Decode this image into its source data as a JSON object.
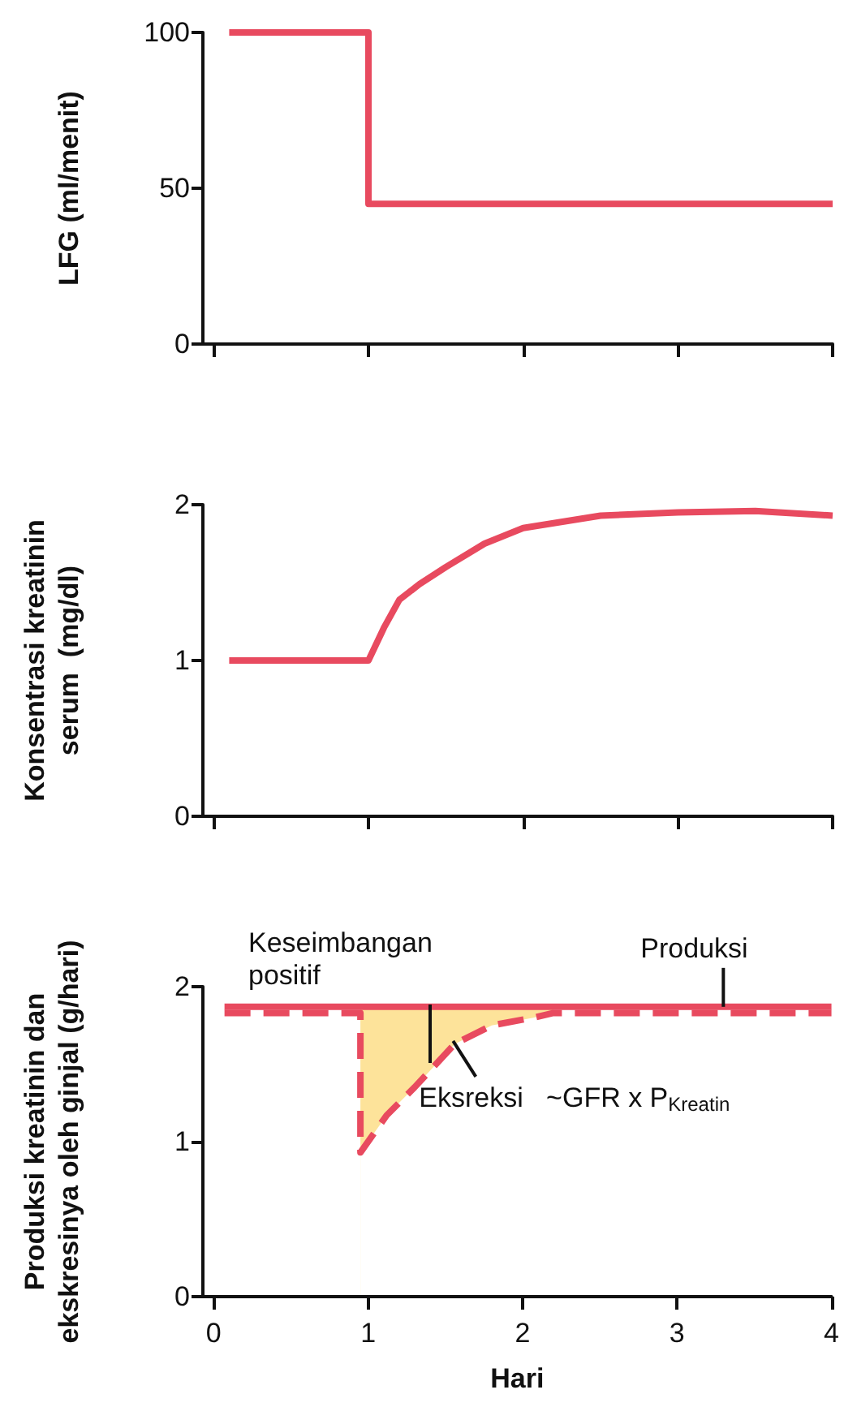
{
  "chart_data": [
    {
      "type": "step",
      "ylabel": "LFG (ml/menit)",
      "x": [
        0.1,
        1,
        4
      ],
      "series": [
        {
          "color": "#e84a5f",
          "values": [
            100,
            45,
            45
          ]
        }
      ],
      "xlim": [
        -0.07,
        4
      ],
      "xticks": [
        {
          "value": 0,
          "label": null
        },
        {
          "value": 1,
          "label": null
        },
        {
          "value": 2,
          "label": null
        },
        {
          "value": 3,
          "label": null
        },
        {
          "value": 4,
          "label": null
        }
      ],
      "ylim": [
        0,
        100
      ],
      "yticks": [
        0,
        50,
        100
      ],
      "tick_labels": "y",
      "marker": "none",
      "line_style": "solid",
      "grid": false
    },
    {
      "type": "line",
      "ylabel": "Konsentrasi kreatinin\nserum  (mg/dl)",
      "x": [
        0.1,
        1,
        1.1,
        1.2,
        1.33,
        1.5,
        1.75,
        2,
        2.5,
        3,
        3.5,
        4
      ],
      "series": [
        {
          "color": "#e84a5f",
          "values": [
            1,
            1,
            1.21,
            1.39,
            1.49,
            1.6,
            1.75,
            1.85,
            1.93,
            1.95,
            1.96,
            1.93
          ]
        }
      ],
      "xlim": [
        -0.07,
        4
      ],
      "xticks": [
        {
          "value": 0,
          "label": null
        },
        {
          "value": 1,
          "label": null
        },
        {
          "value": 2,
          "label": null
        },
        {
          "value": 3,
          "label": null
        },
        {
          "value": 4,
          "label": null
        }
      ],
      "ylim": [
        0,
        2
      ],
      "yticks": [
        0,
        1,
        2
      ],
      "tick_labels": "y",
      "marker": "none",
      "line_style": "solid",
      "grid": false
    },
    {
      "type": "line",
      "xlabel": "Hari",
      "ylabel": "Produksi kreatinin dan\nekskresinya oleh ginjal (g/hari)",
      "series": [
        {
          "type": "area",
          "color": "#fde39a",
          "x": [
            0.95,
            1.12,
            1.3,
            1.56,
            1.8,
            2.07,
            2.2
          ],
          "values": [
            1.87,
            1.87,
            1.87,
            1.87,
            1.87,
            1.87,
            1.87
          ]
        },
        {
          "type": "area",
          "color": "#ffffff",
          "x": [
            0.95,
            1.12,
            1.3,
            1.56,
            1.8,
            2.07,
            2.2
          ],
          "values": [
            0.93,
            1.17,
            1.35,
            1.63,
            1.75,
            1.8,
            1.83
          ]
        },
        {
          "color": "#e84a5f",
          "x": [
            0.07,
            4
          ],
          "values": [
            1.87,
            1.87
          ]
        },
        {
          "color": "#e84a5f",
          "line_style": "dashed",
          "x": [
            0.07,
            0.95,
            0.95,
            1.12,
            1.3,
            1.56,
            1.8,
            2.07,
            2.2,
            4
          ],
          "values": [
            1.83,
            1.83,
            0.93,
            1.17,
            1.35,
            1.63,
            1.75,
            1.8,
            1.83,
            1.83
          ]
        }
      ],
      "annotations": [
        "Keseimbangan\npositif",
        {
          "text": "Produksi",
          "x": 3.3,
          "y": 1.87
        },
        {
          "text": "Eksreksi   ~GFR x P$_{Kreatin}$",
          "x": 1.55,
          "y": 1.65
        }
      ],
      "xlim": [
        -0.07,
        4
      ],
      "xticks": [
        0,
        1,
        2,
        3,
        4
      ],
      "ylim": [
        0,
        2
      ],
      "yticks": [
        0,
        1,
        2
      ],
      "marker": "none",
      "line_style": "solid",
      "grid": false
    }
  ]
}
